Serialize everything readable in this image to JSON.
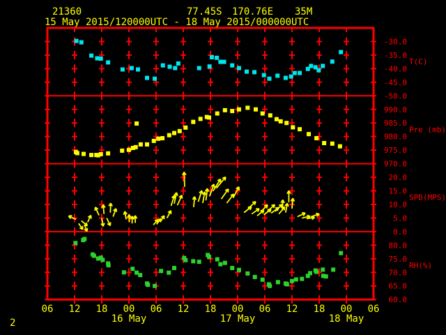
{
  "header": {
    "station_id": "21360",
    "latitude": "77.45S",
    "longitude": "170.76E",
    "elevation": "35M",
    "time_range": "15 May 2015/120000UTC - 18 May 2015/000000UTC"
  },
  "footer": {
    "page_indicator": "2"
  },
  "colors": {
    "background": "#000000",
    "grid": "#ff0000",
    "axis_text": "#ff0000",
    "header_text": "#ffff00",
    "xaxis_text": "#ffff00",
    "temperature": "#00e6ee",
    "pressure": "#ffff00",
    "wind": "#ffff00",
    "humidity": "#2ed22e"
  },
  "chart_data": {
    "type": "scatter",
    "title": "Station 21360 meteogram 15 May 2015 12UTC - 18 May 2015 00UTC",
    "x_axis": {
      "hours_per_tick": 6,
      "hours_span": [
        0,
        72
      ],
      "hour_ticks": [
        "06",
        "12",
        "18",
        "00",
        "06",
        "12",
        "18",
        "00",
        "06",
        "12",
        "18",
        "00",
        "06"
      ],
      "date_labels": [
        {
          "label": "16 May",
          "tick_index": 3
        },
        {
          "label": "17 May",
          "tick_index": 7
        },
        {
          "label": "18 May",
          "tick_index": 11
        }
      ]
    },
    "panels": [
      {
        "name": "temperature",
        "unit_label": "T(C)",
        "tick_labels": [
          "-30.0",
          "-35.0",
          "-40.0",
          "-45.0",
          "-50.0"
        ],
        "value_top": -30,
        "value_bottom": -50,
        "series_type": "points",
        "color_key": "temperature",
        "points": [
          [
            6.4,
            -29.8
          ],
          [
            7.5,
            -30.3
          ],
          [
            9.7,
            -35.2
          ],
          [
            11.0,
            -36.2
          ],
          [
            11.8,
            -36.3
          ],
          [
            13.4,
            -37.7
          ],
          [
            16.6,
            -40.3
          ],
          [
            18.6,
            -39.8
          ],
          [
            20.0,
            -40.3
          ],
          [
            22.0,
            -43.4
          ],
          [
            23.7,
            -43.7
          ],
          [
            25.5,
            -38.8
          ],
          [
            27.0,
            -39.3
          ],
          [
            28.2,
            -39.8
          ],
          [
            28.9,
            -38.1
          ],
          [
            33.5,
            -39.8
          ],
          [
            35.8,
            -39.2
          ],
          [
            36.3,
            -35.8
          ],
          [
            37.4,
            -36.0
          ],
          [
            38.2,
            -37.5
          ],
          [
            39.0,
            -37.5
          ],
          [
            40.8,
            -38.8
          ],
          [
            42.3,
            -39.8
          ],
          [
            44.0,
            -41.1
          ],
          [
            45.7,
            -41.3
          ],
          [
            47.8,
            -42.4
          ],
          [
            49.0,
            -43.7
          ],
          [
            50.8,
            -42.6
          ],
          [
            52.6,
            -43.4
          ],
          [
            53.8,
            -42.9
          ],
          [
            54.6,
            -41.6
          ],
          [
            55.7,
            -41.6
          ],
          [
            57.5,
            -40.1
          ],
          [
            58.2,
            -39.0
          ],
          [
            59.2,
            -39.5
          ],
          [
            59.9,
            -40.6
          ],
          [
            60.8,
            -39.0
          ],
          [
            62.9,
            -37.4
          ],
          [
            64.8,
            -33.9
          ]
        ]
      },
      {
        "name": "pressure",
        "unit_label": "Pre (mb)",
        "tick_labels": [
          "990.0",
          "985.0",
          "980.0",
          "975.0",
          "970.0"
        ],
        "value_top": 990,
        "value_bottom": 970,
        "series_type": "points",
        "color_key": "pressure",
        "points": [
          [
            6.3,
            974.3
          ],
          [
            6.6,
            973.9
          ],
          [
            8.0,
            973.6
          ],
          [
            9.7,
            973.2
          ],
          [
            10.8,
            973.2
          ],
          [
            11.2,
            973.1
          ],
          [
            11.8,
            973.5
          ],
          [
            13.4,
            973.8
          ],
          [
            16.5,
            974.8
          ],
          [
            18.0,
            975.1
          ],
          [
            18.9,
            975.8
          ],
          [
            19.5,
            976.1
          ],
          [
            19.7,
            984.8
          ],
          [
            20.6,
            977.1
          ],
          [
            22.0,
            977.1
          ],
          [
            23.5,
            978.4
          ],
          [
            24.5,
            979.2
          ],
          [
            25.4,
            979.4
          ],
          [
            26.9,
            980.5
          ],
          [
            28.0,
            981.3
          ],
          [
            29.2,
            982.0
          ],
          [
            30.5,
            983.3
          ],
          [
            32.2,
            985.4
          ],
          [
            33.8,
            986.5
          ],
          [
            35.2,
            987.2
          ],
          [
            35.7,
            987.0
          ],
          [
            37.5,
            988.5
          ],
          [
            39.2,
            989.7
          ],
          [
            40.8,
            989.4
          ],
          [
            42.3,
            990.0
          ],
          [
            44.2,
            990.6
          ],
          [
            46.0,
            990.0
          ],
          [
            47.5,
            988.5
          ],
          [
            49.2,
            987.8
          ],
          [
            50.6,
            986.4
          ],
          [
            51.5,
            985.6
          ],
          [
            52.8,
            985.0
          ],
          [
            54.2,
            983.4
          ],
          [
            55.7,
            982.7
          ],
          [
            57.7,
            980.9
          ],
          [
            59.4,
            979.4
          ],
          [
            61.1,
            977.6
          ],
          [
            62.9,
            977.4
          ],
          [
            64.6,
            976.4
          ]
        ]
      },
      {
        "name": "wind_speed",
        "unit_label": "SPD(MPS)",
        "tick_labels": [
          "20.0",
          "15.0",
          "10.0",
          "5.0",
          "0.0"
        ],
        "value_top": 20,
        "value_bottom": 0,
        "series_type": "arrows",
        "color_key": "wind",
        "points": [
          [
            6.3,
            4.5,
            155
          ],
          [
            6.9,
            3.0,
            -55
          ],
          [
            7.5,
            4.0,
            -40
          ],
          [
            8.2,
            2.5,
            -70
          ],
          [
            8.9,
            3.5,
            65
          ],
          [
            11.4,
            6.0,
            115
          ],
          [
            12.0,
            5.0,
            -80
          ],
          [
            12.5,
            6.5,
            95
          ],
          [
            13.1,
            5.0,
            -65
          ],
          [
            13.9,
            7.0,
            88
          ],
          [
            14.5,
            5.5,
            70
          ],
          [
            17.4,
            4.5,
            100
          ],
          [
            18.1,
            3.5,
            92
          ],
          [
            18.7,
            3.0,
            88
          ],
          [
            19.4,
            3.2,
            90
          ],
          [
            23.4,
            2.5,
            48
          ],
          [
            24.1,
            2.7,
            52
          ],
          [
            24.9,
            3.5,
            58
          ],
          [
            26.4,
            5.0,
            62
          ],
          [
            27.3,
            9.5,
            72
          ],
          [
            28.0,
            10.3,
            78
          ],
          [
            28.7,
            9.7,
            66
          ],
          [
            30.3,
            16.5,
            92
          ],
          [
            32.3,
            9.0,
            85
          ],
          [
            33.3,
            11.0,
            72
          ],
          [
            34.3,
            10.5,
            80
          ],
          [
            35.0,
            11.5,
            83
          ],
          [
            35.8,
            13.0,
            70
          ],
          [
            36.6,
            15.0,
            58
          ],
          [
            37.3,
            16.0,
            50
          ],
          [
            38.4,
            12.0,
            55
          ],
          [
            39.6,
            10.5,
            52
          ],
          [
            41.0,
            12.4,
            62
          ],
          [
            43.4,
            7.0,
            38
          ],
          [
            44.3,
            8.5,
            42
          ],
          [
            45.1,
            6.5,
            35
          ],
          [
            46.3,
            5.8,
            40
          ],
          [
            47.1,
            7.3,
            45
          ],
          [
            47.8,
            6.2,
            38
          ],
          [
            48.6,
            7.5,
            42
          ],
          [
            49.4,
            6.8,
            36
          ],
          [
            50.3,
            7.5,
            44
          ],
          [
            51.1,
            6.5,
            50
          ],
          [
            51.9,
            8.0,
            88
          ],
          [
            52.6,
            7.0,
            80
          ],
          [
            53.3,
            10.8,
            90
          ],
          [
            54.0,
            8.5,
            85
          ],
          [
            55.2,
            5.5,
            25
          ],
          [
            56.2,
            5.0,
            12
          ],
          [
            57.2,
            4.8,
            8
          ],
          [
            58.2,
            5.5,
            18
          ]
        ]
      },
      {
        "name": "relative_humidity",
        "unit_label": "RH(%)",
        "tick_labels": [
          "80.0",
          "75.0",
          "70.0",
          "65.0",
          "60.0"
        ],
        "value_top": 80,
        "value_bottom": 60,
        "series_type": "points",
        "color_key": "humidity",
        "points": [
          [
            6.2,
            80.8
          ],
          [
            7.9,
            81.9
          ],
          [
            8.2,
            82.3
          ],
          [
            10.0,
            76.6
          ],
          [
            10.3,
            76.1
          ],
          [
            11.2,
            75.1
          ],
          [
            11.8,
            75.4
          ],
          [
            12.2,
            74.6
          ],
          [
            13.4,
            73.3
          ],
          [
            13.5,
            72.6
          ],
          [
            16.9,
            70.0
          ],
          [
            18.8,
            71.3
          ],
          [
            19.7,
            69.9
          ],
          [
            20.5,
            69.0
          ],
          [
            22.0,
            65.9
          ],
          [
            22.2,
            65.4
          ],
          [
            23.7,
            65.0
          ],
          [
            25.1,
            70.5
          ],
          [
            26.8,
            69.9
          ],
          [
            28.0,
            71.6
          ],
          [
            30.2,
            75.3
          ],
          [
            30.5,
            74.5
          ],
          [
            32.2,
            74.1
          ],
          [
            33.5,
            73.9
          ],
          [
            35.4,
            76.4
          ],
          [
            35.7,
            75.7
          ],
          [
            37.5,
            74.8
          ],
          [
            38.2,
            73.0
          ],
          [
            39.2,
            73.5
          ],
          [
            40.8,
            71.6
          ],
          [
            42.3,
            70.9
          ],
          [
            44.2,
            69.6
          ],
          [
            45.8,
            68.3
          ],
          [
            47.5,
            67.3
          ],
          [
            48.9,
            65.6
          ],
          [
            49.1,
            65.0
          ],
          [
            50.9,
            66.4
          ],
          [
            52.6,
            65.9
          ],
          [
            52.9,
            65.6
          ],
          [
            54.0,
            66.8
          ],
          [
            54.9,
            67.4
          ],
          [
            56.2,
            67.6
          ],
          [
            57.5,
            68.7
          ],
          [
            58.0,
            69.7
          ],
          [
            59.2,
            70.7
          ],
          [
            59.4,
            70.2
          ],
          [
            60.8,
            71.0
          ],
          [
            60.9,
            68.7
          ],
          [
            61.5,
            68.5
          ],
          [
            63.1,
            71.0
          ],
          [
            64.8,
            77.1
          ]
        ]
      }
    ]
  }
}
